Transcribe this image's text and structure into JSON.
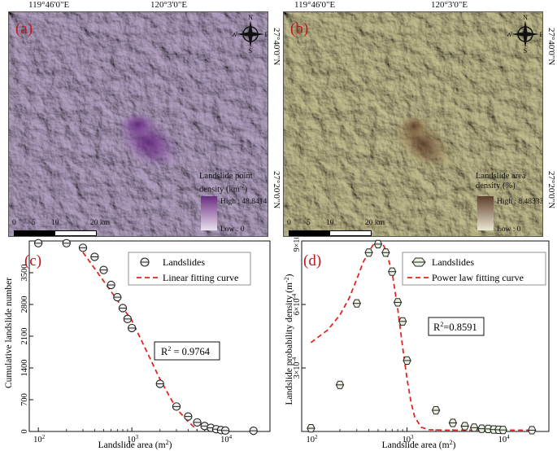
{
  "top_coords": [
    "119°46'0\"E",
    "120°3'0\"E"
  ],
  "side_coords": [
    "27°40'0\"N",
    "27°20'0\"N"
  ],
  "compass": {
    "n": "N",
    "s": "S",
    "e": "E",
    "w": "W"
  },
  "scalebar": {
    "ticks": [
      "0",
      "5",
      "10",
      "20 km"
    ]
  },
  "panel_a": {
    "letter": "(a)",
    "legend_title_1": "Landslide point",
    "legend_title_2": "density (km",
    "legend_title_sup": "-2",
    "legend_title_3": ")",
    "high": "High : 48.8414",
    "low": "Low : 0",
    "base_color": "#b9a7c9",
    "hot_color": "#6a2c80"
  },
  "panel_b": {
    "letter": "(b)",
    "legend_title_1": "Landslide area",
    "legend_title_2": "density (%)",
    "high": "High : 8.48333",
    "low": "Low : 0",
    "base_color": "#c9c394",
    "hot_color": "#5e3d2a"
  },
  "chart_data": [
    {
      "type": "scatter",
      "panel": "(c)",
      "xscale": "log",
      "xlim": [
        80,
        30000
      ],
      "ylim": [
        0,
        4200
      ],
      "xticks": [
        "10",
        "10",
        "10"
      ],
      "xtick_exp": [
        "2",
        "3",
        "4"
      ],
      "yticks": [
        "0",
        "700",
        "1400",
        "2100",
        "2800",
        "3500"
      ],
      "xlabel": "Landslide area (m",
      "xlabel_sup": "2",
      "xlabel_end": ")",
      "ylabel": "Cumulative landslide number",
      "legend": [
        "Landslides",
        "Linear fitting curve"
      ],
      "r2_text": "R",
      "r2_sup": "2",
      "r2_value": " = 0.9764",
      "points": [
        [
          100,
          4150
        ],
        [
          200,
          4150
        ],
        [
          300,
          4050
        ],
        [
          400,
          3850
        ],
        [
          500,
          3560
        ],
        [
          600,
          3230
        ],
        [
          700,
          2960
        ],
        [
          800,
          2720
        ],
        [
          900,
          2480
        ],
        [
          1000,
          2280
        ],
        [
          2000,
          1050
        ],
        [
          3000,
          550
        ],
        [
          4000,
          330
        ],
        [
          5000,
          200
        ],
        [
          6000,
          120
        ],
        [
          7000,
          80
        ],
        [
          8000,
          50
        ],
        [
          9000,
          30
        ],
        [
          10000,
          20
        ],
        [
          20000,
          15
        ]
      ],
      "fit": [
        [
          300,
          3950
        ],
        [
          1000,
          2450
        ],
        [
          2000,
          1150
        ],
        [
          3000,
          500
        ],
        [
          4000,
          220
        ],
        [
          5000,
          30
        ]
      ]
    },
    {
      "type": "scatter",
      "panel": "(d)",
      "xscale": "log",
      "xlim": [
        80,
        30000
      ],
      "ylim": [
        0,
        0.0009
      ],
      "xticks": [
        "10",
        "10",
        "10"
      ],
      "xtick_exp": [
        "2",
        "3",
        "4"
      ],
      "ytick_labels": [
        "3×10",
        "6×10",
        "9×10"
      ],
      "ytick_exp": "-4",
      "ytick_values": [
        0.0003,
        0.0006,
        0.0009
      ],
      "xlabel": "Landslide area (m",
      "xlabel_sup": "2",
      "xlabel_end": ")",
      "ylabel": "Landslide probability density (m",
      "ylabel_sup": "-2",
      "ylabel_end": ")",
      "legend": [
        "Landslides",
        "Power law fitting curve"
      ],
      "r2_text": "R",
      "r2_sup": "2",
      "r2_value": "=0.8591",
      "points": [
        [
          100,
          1.5e-05
        ],
        [
          200,
          0.00022
        ],
        [
          300,
          0.000605
        ],
        [
          400,
          0.000845
        ],
        [
          500,
          0.000885
        ],
        [
          600,
          0.000845
        ],
        [
          700,
          0.000755
        ],
        [
          800,
          0.00061
        ],
        [
          900,
          0.00052
        ],
        [
          1000,
          0.000335
        ],
        [
          2000,
          0.0001
        ],
        [
          3000,
          4.05e-05
        ],
        [
          4000,
          2.5e-05
        ],
        [
          5000,
          1.8e-05
        ],
        [
          6000,
          1.3e-05
        ],
        [
          7000,
          1.2e-05
        ],
        [
          8000,
          9e-06
        ],
        [
          9000,
          8e-06
        ],
        [
          10000,
          7e-06
        ],
        [
          20000,
          6e-06
        ]
      ],
      "fit": [
        [
          100,
          0.00042
        ],
        [
          150,
          0.00048
        ],
        [
          200,
          0.00055
        ],
        [
          250,
          0.00063
        ],
        [
          300,
          0.00072
        ],
        [
          350,
          0.0008
        ],
        [
          400,
          0.00085
        ],
        [
          450,
          0.000885
        ],
        [
          500,
          0.000895
        ],
        [
          550,
          0.00089
        ],
        [
          600,
          0.00086
        ],
        [
          700,
          0.00075
        ],
        [
          800,
          0.00058
        ],
        [
          900,
          0.0004
        ],
        [
          1000,
          0.00025
        ],
        [
          1100,
          0.00014
        ],
        [
          1200,
          7e-05
        ],
        [
          1400,
          2e-05
        ],
        [
          1700,
          8e-06
        ],
        [
          2500,
          6e-06
        ],
        [
          10000,
          6e-06
        ],
        [
          20000,
          6e-06
        ]
      ]
    }
  ]
}
